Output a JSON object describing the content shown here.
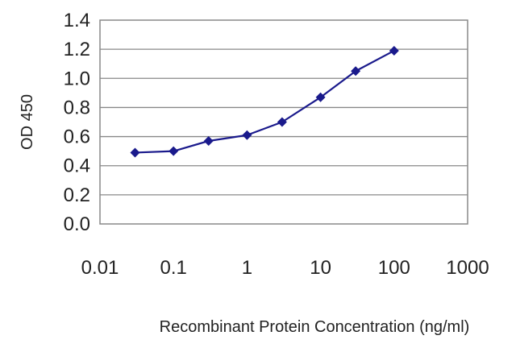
{
  "chart_data": {
    "type": "line",
    "title": "",
    "xlabel": "Recombinant Protein Concentration (ng/ml)",
    "ylabel": "OD 450",
    "x_scale": "log",
    "xlim": [
      0.01,
      1000
    ],
    "ylim": [
      0.0,
      1.4
    ],
    "x_ticks": [
      "0.01",
      "0.1",
      "1",
      "10",
      "100",
      "1000"
    ],
    "y_ticks": [
      "0.0",
      "0.2",
      "0.4",
      "0.6",
      "0.8",
      "1.0",
      "1.2",
      "1.4"
    ],
    "grid": "horizontal",
    "legend": "none",
    "series": [
      {
        "color": "#1a1a8c",
        "marker": "diamond",
        "x": [
          0.03,
          0.1,
          0.3,
          1,
          3,
          10,
          30,
          100
        ],
        "y": [
          0.49,
          0.5,
          0.57,
          0.61,
          0.7,
          0.87,
          1.05,
          1.19
        ]
      }
    ]
  }
}
